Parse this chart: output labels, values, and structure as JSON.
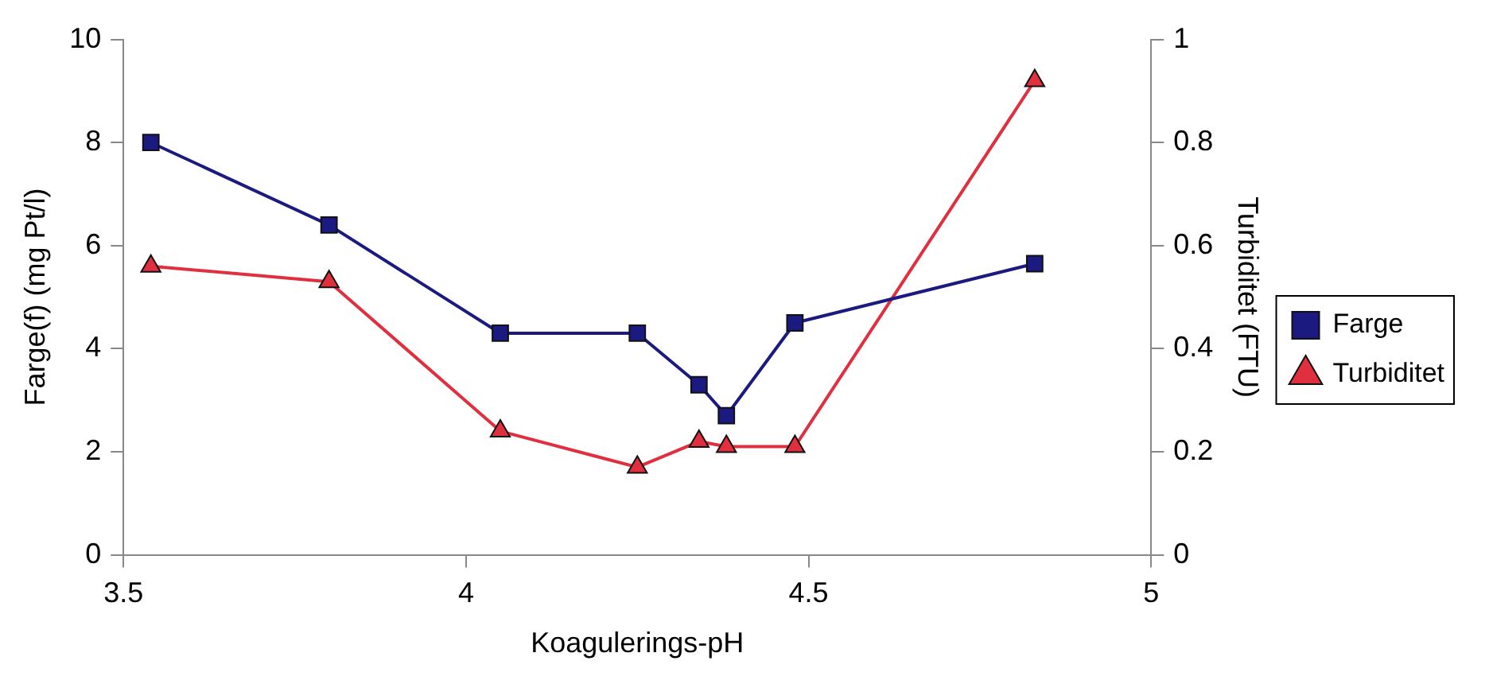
{
  "chart_data": {
    "type": "line",
    "xlabel": "Koagulerings-pH",
    "ylabel": "Farge(f) (mg Pt/l)",
    "y2label": "Turbiditet (FTU)",
    "x": [
      3.54,
      3.8,
      4.05,
      4.25,
      4.34,
      4.38,
      4.48,
      4.83
    ],
    "series": [
      {
        "name": "Farge",
        "color": "#1a1a80",
        "marker": "square",
        "values": [
          8.0,
          6.4,
          4.3,
          4.3,
          3.3,
          2.7,
          4.5,
          5.65
        ]
      },
      {
        "name": "Turbiditet",
        "color": "#e03040",
        "marker": "triangle",
        "axis": "y2",
        "values": [
          0.56,
          0.53,
          0.24,
          0.17,
          0.22,
          0.21,
          0.21,
          0.92
        ]
      }
    ],
    "xlim": [
      3.5,
      5
    ],
    "xticks": [
      3.5,
      4,
      4.5,
      5
    ],
    "ylim": [
      0,
      10
    ],
    "yticks": [
      0,
      2,
      4,
      6,
      8,
      10
    ],
    "y2lim": [
      0,
      1
    ],
    "y2ticks": [
      0,
      0.2,
      0.4,
      0.6,
      0.8,
      1
    ],
    "grid": false,
    "legend": "right",
    "line_style": "solid"
  }
}
